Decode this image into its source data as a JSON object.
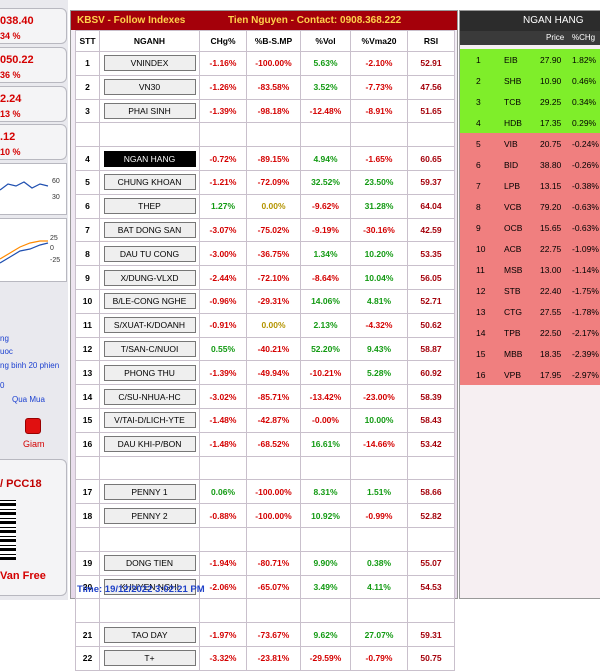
{
  "left_panel": {
    "boxes": [
      {
        "big": "038.40",
        "small": "34 %"
      },
      {
        "big": "050.22",
        "small": "36 %"
      },
      {
        "big": "2.24",
        "small": "13 %"
      },
      {
        "big": ".12",
        "small": "10 %"
      }
    ],
    "chart1_ticks": [
      "60",
      "30"
    ],
    "chart2_ticks": [
      "25",
      "0",
      "-25"
    ],
    "notes": [
      "ng",
      "uoc",
      "ng binh 20 phien",
      "0",
      "Qua Mua"
    ],
    "giam_label": "Giam",
    "pcc_label": "/ PCC18",
    "vanfree_label": "Van Free"
  },
  "main": {
    "brand": "KBSV - Follow Indexes",
    "contact": "Tien Nguyen - Contact: 0908.368.222",
    "columns": [
      "STT",
      "NGANH",
      "CHg%",
      "%B-S.MP",
      "%Vol",
      "%Vma20",
      "RSI"
    ],
    "rows": [
      {
        "stt": "1",
        "name": "VNINDEX",
        "chg": "-1.16%",
        "bs": "-100.00%",
        "vol": "5.63%",
        "vma": "-2.10%",
        "rsi": "52.91"
      },
      {
        "stt": "2",
        "name": "VN30",
        "chg": "-1.26%",
        "bs": "-83.58%",
        "vol": "3.52%",
        "vma": "-7.73%",
        "rsi": "47.56"
      },
      {
        "stt": "3",
        "name": "PHAI SINH",
        "chg": "-1.39%",
        "bs": "-98.18%",
        "vol": "-12.48%",
        "vma": "-8.91%",
        "rsi": "51.65"
      },
      {
        "blank": true
      },
      {
        "stt": "4",
        "name": "NGAN HANG",
        "chg": "-0.72%",
        "bs": "-89.15%",
        "vol": "4.94%",
        "vma": "-1.65%",
        "rsi": "60.65",
        "selected": true
      },
      {
        "stt": "5",
        "name": "CHUNG KHOAN",
        "chg": "-1.21%",
        "bs": "-72.09%",
        "vol": "32.52%",
        "vma": "23.50%",
        "rsi": "59.37"
      },
      {
        "stt": "6",
        "name": "THEP",
        "chg": "1.27%",
        "bs": "0.00%",
        "vol": "-9.62%",
        "vma": "31.28%",
        "rsi": "64.04"
      },
      {
        "stt": "7",
        "name": "BAT DONG SAN",
        "chg": "-3.07%",
        "bs": "-75.02%",
        "vol": "-9.19%",
        "vma": "-30.16%",
        "rsi": "42.59"
      },
      {
        "stt": "8",
        "name": "DAU TU CONG",
        "chg": "-3.00%",
        "bs": "-36.75%",
        "vol": "1.34%",
        "vma": "10.20%",
        "rsi": "53.35"
      },
      {
        "stt": "9",
        "name": "X/DUNG-VLXD",
        "chg": "-2.44%",
        "bs": "-72.10%",
        "vol": "-8.64%",
        "vma": "10.04%",
        "rsi": "56.05"
      },
      {
        "stt": "10",
        "name": "B/LE-CONG NGHE",
        "chg": "-0.96%",
        "bs": "-29.31%",
        "vol": "14.06%",
        "vma": "4.81%",
        "rsi": "52.71"
      },
      {
        "stt": "11",
        "name": "S/XUAT-K/DOANH",
        "chg": "-0.91%",
        "bs": "0.00%",
        "vol": "2.13%",
        "vma": "-4.32%",
        "rsi": "50.62"
      },
      {
        "stt": "12",
        "name": "T/SAN-C/NUOI",
        "chg": "0.55%",
        "bs": "-40.21%",
        "vol": "52.20%",
        "vma": "9.43%",
        "rsi": "58.87"
      },
      {
        "stt": "13",
        "name": "PHONG THU",
        "chg": "-1.39%",
        "bs": "-49.94%",
        "vol": "-10.21%",
        "vma": "5.28%",
        "rsi": "60.92"
      },
      {
        "stt": "14",
        "name": "C/SU-NHUA-HC",
        "chg": "-3.02%",
        "bs": "-85.71%",
        "vol": "-13.42%",
        "vma": "-23.00%",
        "rsi": "58.39"
      },
      {
        "stt": "15",
        "name": "V/TAI-D/LICH-YTE",
        "chg": "-1.48%",
        "bs": "-42.87%",
        "vol": "-0.00%",
        "vma": "10.00%",
        "rsi": "58.43"
      },
      {
        "stt": "16",
        "name": "DAU KHI-P/BON",
        "chg": "-1.48%",
        "bs": "-68.52%",
        "vol": "16.61%",
        "vma": "-14.66%",
        "rsi": "53.42"
      },
      {
        "blank": true
      },
      {
        "stt": "17",
        "name": "PENNY 1",
        "chg": "0.06%",
        "bs": "-100.00%",
        "vol": "8.31%",
        "vma": "1.51%",
        "rsi": "58.66"
      },
      {
        "stt": "18",
        "name": "PENNY 2",
        "chg": "-0.88%",
        "bs": "-100.00%",
        "vol": "10.92%",
        "vma": "-0.99%",
        "rsi": "52.82"
      },
      {
        "blank": true
      },
      {
        "stt": "19",
        "name": "DONG TIEN",
        "chg": "-1.94%",
        "bs": "-80.71%",
        "vol": "9.90%",
        "vma": "0.38%",
        "rsi": "55.07"
      },
      {
        "stt": "20",
        "name": "KHUYEN NGHI",
        "chg": "-2.06%",
        "bs": "-65.07%",
        "vol": "3.49%",
        "vma": "4.11%",
        "rsi": "54.53"
      },
      {
        "blank": true
      },
      {
        "stt": "21",
        "name": "TAO DAY",
        "chg": "-1.97%",
        "bs": "-73.67%",
        "vol": "9.62%",
        "vma": "27.07%",
        "rsi": "59.31"
      },
      {
        "stt": "22",
        "name": "T+",
        "chg": "-3.32%",
        "bs": "-23.81%",
        "vol": "-29.59%",
        "vma": "-0.79%",
        "rsi": "50.75"
      }
    ],
    "time": "Time: 19/12/2022 3:02:21 PM"
  },
  "right_panel": {
    "title": "NGAN HANG",
    "columns": [
      "Price",
      "%CHg"
    ],
    "rows": [
      {
        "n": "1",
        "code": "EIB",
        "price": "27.90",
        "chg": "1.82%",
        "up": true
      },
      {
        "n": "2",
        "code": "SHB",
        "price": "10.90",
        "chg": "0.46%",
        "up": true
      },
      {
        "n": "3",
        "code": "TCB",
        "price": "29.25",
        "chg": "0.34%",
        "up": true
      },
      {
        "n": "4",
        "code": "HDB",
        "price": "17.35",
        "chg": "0.29%",
        "up": true
      },
      {
        "n": "5",
        "code": "VIB",
        "price": "20.75",
        "chg": "-0.24%",
        "up": false
      },
      {
        "n": "6",
        "code": "BID",
        "price": "38.80",
        "chg": "-0.26%",
        "up": false
      },
      {
        "n": "7",
        "code": "LPB",
        "price": "13.15",
        "chg": "-0.38%",
        "up": false
      },
      {
        "n": "8",
        "code": "VCB",
        "price": "79.20",
        "chg": "-0.63%",
        "up": false
      },
      {
        "n": "9",
        "code": "OCB",
        "price": "15.65",
        "chg": "-0.63%",
        "up": false
      },
      {
        "n": "10",
        "code": "ACB",
        "price": "22.75",
        "chg": "-1.09%",
        "up": false
      },
      {
        "n": "11",
        "code": "MSB",
        "price": "13.00",
        "chg": "-1.14%",
        "up": false
      },
      {
        "n": "12",
        "code": "STB",
        "price": "22.40",
        "chg": "-1.75%",
        "up": false
      },
      {
        "n": "13",
        "code": "CTG",
        "price": "27.55",
        "chg": "-1.78%",
        "up": false
      },
      {
        "n": "14",
        "code": "TPB",
        "price": "22.50",
        "chg": "-2.17%",
        "up": false
      },
      {
        "n": "15",
        "code": "MBB",
        "price": "18.35",
        "chg": "-2.39%",
        "up": false
      },
      {
        "n": "16",
        "code": "VPB",
        "price": "17.95",
        "chg": "-2.97%",
        "up": false
      }
    ]
  }
}
